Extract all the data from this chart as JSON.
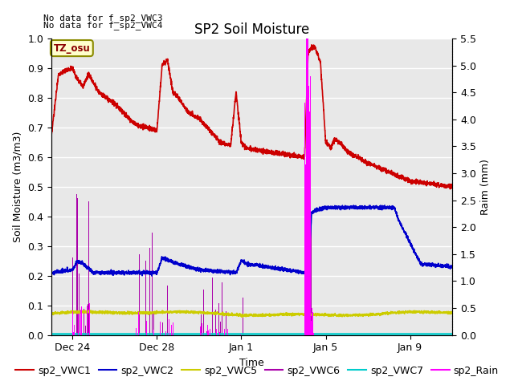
{
  "title": "SP2 Soil Moisture",
  "ylabel_left": "Soil Moisture (m3/m3)",
  "ylabel_right": "Raim (mm)",
  "xlabel": "Time",
  "top_text": [
    "No data for f_sp2_VWC3",
    "No data for f_sp2_VWC4"
  ],
  "tz_label": "TZ_osu",
  "ylim_left": [
    0.0,
    1.0
  ],
  "ylim_right": [
    0.0,
    5.5
  ],
  "plot_bg": "#e8e8e8",
  "fig_bg": "#ffffff",
  "grid_color": "#ffffff",
  "colors": {
    "vwc1": "#cc0000",
    "vwc2": "#0000cc",
    "vwc5": "#cccc00",
    "vwc6": "#aa00aa",
    "vwc7": "#00cccc",
    "rain": "#ff00ff"
  },
  "tick_positions_h": [
    24,
    120,
    216,
    312,
    408
  ],
  "tick_labels": [
    "Dec 24",
    "Dec 28",
    "Jan 1",
    "Jan 5",
    "Jan 9"
  ],
  "right_yticks": [
    0.0,
    0.5,
    1.0,
    1.5,
    2.0,
    2.5,
    3.0,
    3.5,
    4.0,
    4.5,
    5.0,
    5.5
  ],
  "left_yticks": [
    0.0,
    0.1,
    0.2,
    0.3,
    0.4,
    0.5,
    0.6,
    0.7,
    0.8,
    0.9,
    1.0
  ],
  "title_fontsize": 12,
  "label_fontsize": 9,
  "tick_fontsize": 9,
  "legend_fontsize": 9,
  "linewidth": 1.2,
  "hours_total": 456,
  "n_points": 3000
}
